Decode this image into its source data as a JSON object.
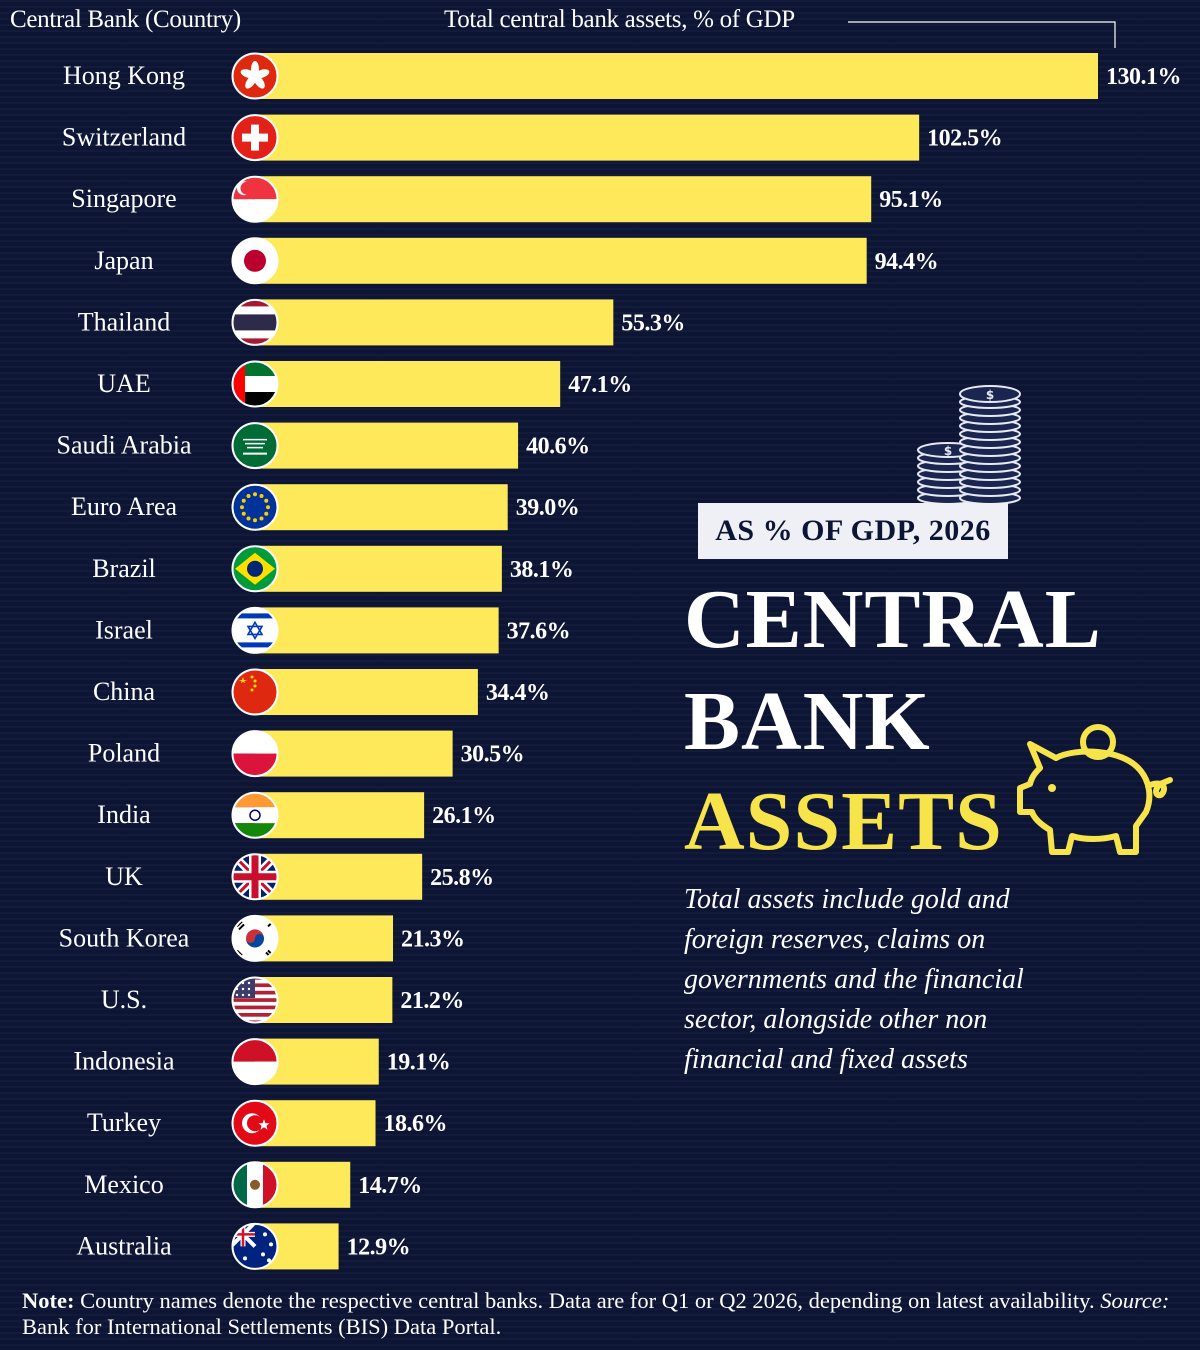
{
  "header": {
    "left": "Central Bank (Country)",
    "right": "Total central bank assets, % of GDP"
  },
  "subtitle": "AS % OF GDP, 2026",
  "title": {
    "line1": "CENTRAL",
    "line2": "BANK",
    "line3": "ASSETS"
  },
  "description": "Total assets include gold and foreign reserves, claims on governments and the financial sector, alongside other non financial and fixed assets",
  "note": {
    "label": "Note:",
    "text": "Country names denote the respective central banks. Data are for Q1 or Q2 2026, depending on latest availability.",
    "source_label": "Source:",
    "source_text": "Bank for International Settlements (BIS) Data Portal."
  },
  "colors": {
    "background": "#0d1535",
    "bar": "#fde95a",
    "accent": "#f6e44a",
    "text": "#ffffff"
  },
  "chart_data": {
    "type": "bar",
    "orientation": "horizontal",
    "xlabel": "Total central bank assets, % of GDP",
    "ylabel": "Central Bank (Country)",
    "categories": [
      "Hong Kong",
      "Switzerland",
      "Singapore",
      "Japan",
      "Thailand",
      "UAE",
      "Saudi Arabia",
      "Euro Area",
      "Brazil",
      "Israel",
      "China",
      "Poland",
      "India",
      "UK",
      "South Korea",
      "U.S.",
      "Indonesia",
      "Turkey",
      "Mexico",
      "Australia"
    ],
    "values": [
      130.1,
      102.5,
      95.1,
      94.4,
      55.3,
      47.1,
      40.6,
      39.0,
      38.1,
      37.6,
      34.4,
      30.5,
      26.1,
      25.8,
      21.3,
      21.2,
      19.1,
      18.6,
      14.7,
      12.9
    ],
    "value_labels": [
      "130.1%",
      "102.5%",
      "95.1%",
      "94.4%",
      "55.3%",
      "47.1%",
      "40.6%",
      "39.0%",
      "38.1%",
      "37.6%",
      "34.4%",
      "30.5%",
      "26.1%",
      "25.8%",
      "21.3%",
      "21.2%",
      "19.1%",
      "18.6%",
      "14.7%",
      "12.9%"
    ],
    "flag_icons": [
      "hong-kong-flag-icon",
      "switzerland-flag-icon",
      "singapore-flag-icon",
      "japan-flag-icon",
      "thailand-flag-icon",
      "uae-flag-icon",
      "saudi-arabia-flag-icon",
      "euro-area-flag-icon",
      "brazil-flag-icon",
      "israel-flag-icon",
      "china-flag-icon",
      "poland-flag-icon",
      "india-flag-icon",
      "uk-flag-icon",
      "south-korea-flag-icon",
      "us-flag-icon",
      "indonesia-flag-icon",
      "turkey-flag-icon",
      "mexico-flag-icon",
      "australia-flag-icon"
    ],
    "xlim": [
      0,
      130.1
    ],
    "grid": false,
    "legend": "none"
  }
}
